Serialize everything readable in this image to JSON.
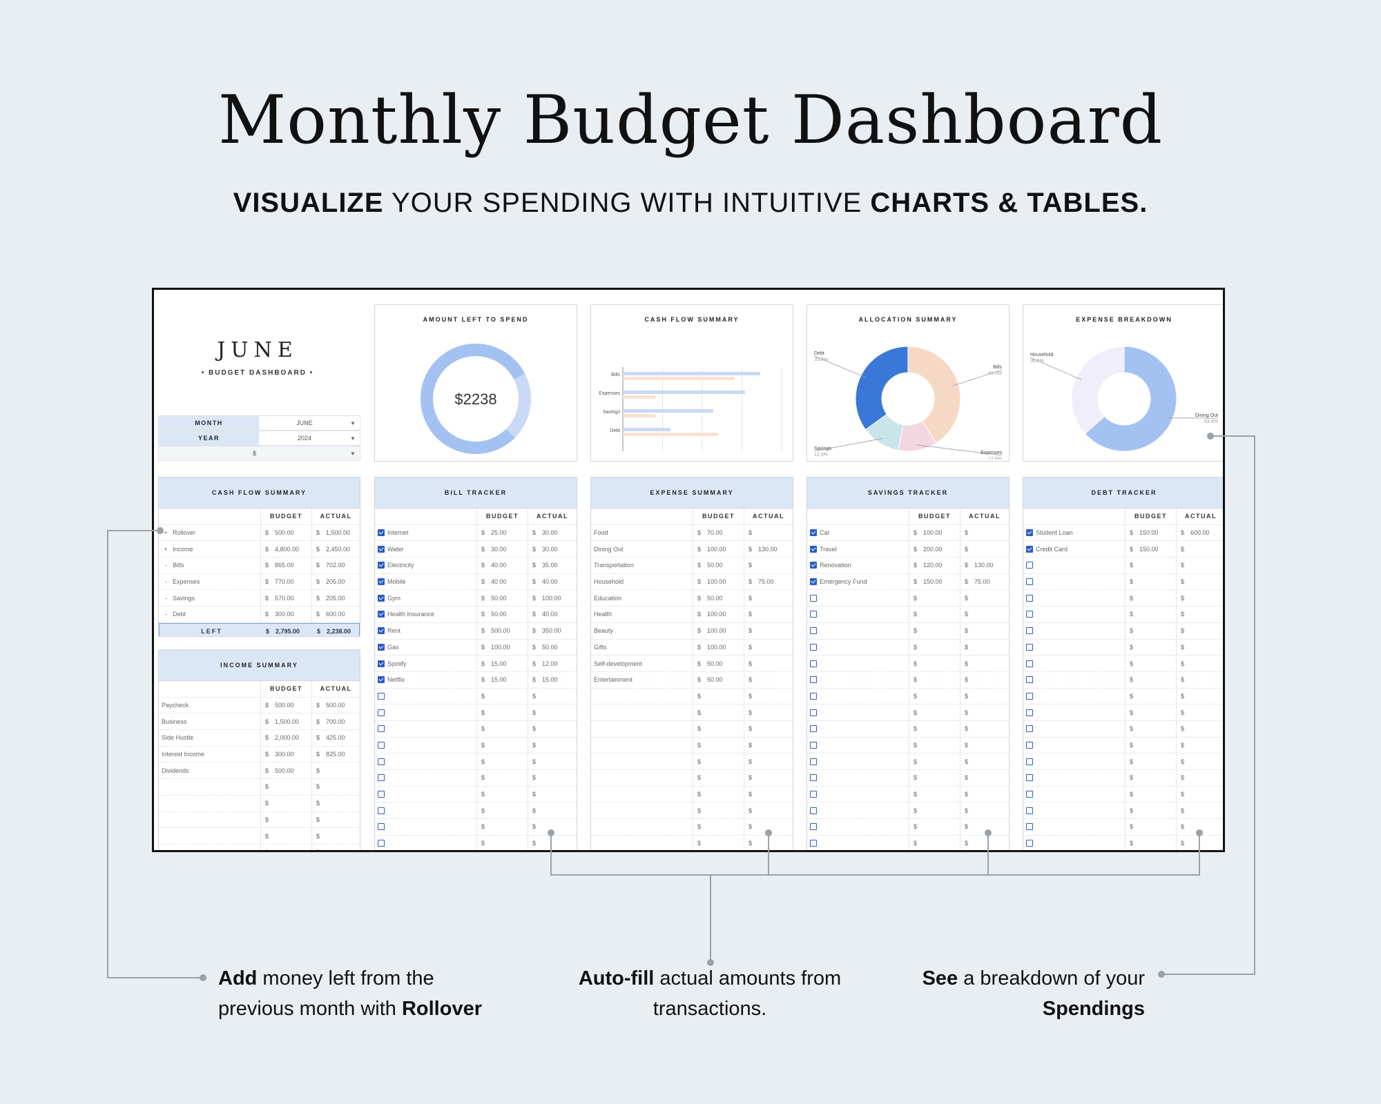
{
  "header": {
    "title": "Monthly Budget Dashboard",
    "subtitle_bold_1": "VISUALIZE",
    "subtitle_mid": " YOUR SPENDING WITH INTUITIVE ",
    "subtitle_bold_2": "CHARTS & TABLES."
  },
  "month_block": {
    "month_name": "JUNE",
    "subtitle": "• BUDGET DASHBOARD •",
    "month_label": "MONTH",
    "month_value": "JUNE",
    "year_label": "YEAR",
    "year_value": "2024",
    "currency_value": "$"
  },
  "amount_left": {
    "title": "AMOUNT LEFT TO SPEND",
    "value": "$2238",
    "remaining_fraction": 0.8
  },
  "cash_flow_chart": {
    "title": "CASH FLOW SUMMARY"
  },
  "allocation_chart": {
    "title": "ALLOCATION SUMMARY"
  },
  "expense_chart": {
    "title": "EXPENSE BREAKDOWN"
  },
  "chart_data": [
    {
      "type": "bar",
      "title": "CASH FLOW SUMMARY",
      "categories": [
        "Bills",
        "Expenses",
        "Savings",
        "Debt"
      ],
      "series": [
        {
          "values": [
            865,
            770,
            570,
            300
          ],
          "color": "#c9d9f3"
        },
        {
          "values": [
            702,
            205,
            205,
            600
          ],
          "color": "#fbe1d2"
        }
      ],
      "orientation": "horizontal"
    },
    {
      "type": "pie",
      "title": "ALLOCATION SUMMARY",
      "labels": [
        "Bills",
        "Expenses",
        "Savings",
        "Debt"
      ],
      "values": [
        41.0,
        12.0,
        12.0,
        35.0
      ],
      "label_text": [
        "41.0%",
        "12.0%",
        "12.0%",
        "35.0%"
      ],
      "colors": [
        "#f6d9c4",
        "#f2d6e0",
        "#c8e6ea",
        "#3a78d8"
      ]
    },
    {
      "type": "pie",
      "title": "EXPENSE BREAKDOWN",
      "labels": [
        "Dining Out",
        "Household"
      ],
      "values": [
        63.4,
        36.6
      ],
      "label_text": [
        "63.4%",
        "36.6%"
      ],
      "colors": [
        "#a4c2f1",
        "#f1eefb"
      ]
    }
  ],
  "cash_flow_table": {
    "title": "CASH FLOW SUMMARY",
    "budget_header": "BUDGET",
    "actual_header": "ACTUAL",
    "rows": [
      {
        "sign": "+",
        "label": "Rollover",
        "budget": "500.00",
        "actual": "1,500.00"
      },
      {
        "sign": "+",
        "label": "Income",
        "budget": "4,800.00",
        "actual": "2,450.00"
      },
      {
        "sign": "-",
        "label": "Bills",
        "budget": "865.00",
        "actual": "702.00"
      },
      {
        "sign": "-",
        "label": "Expenses",
        "budget": "770.00",
        "actual": "205.00"
      },
      {
        "sign": "-",
        "label": "Savings",
        "budget": "570.00",
        "actual": "205.00"
      },
      {
        "sign": "-",
        "label": "Debt",
        "budget": "300.00",
        "actual": "600.00"
      }
    ],
    "left_label": "LEFT",
    "left_budget": "2,795.00",
    "left_actual": "2,238.00"
  },
  "income_table": {
    "title": "INCOME SUMMARY",
    "budget_header": "BUDGET",
    "actual_header": "ACTUAL",
    "rows": [
      {
        "label": "Paycheck",
        "budget": "500.00",
        "actual": "500.00"
      },
      {
        "label": "Business",
        "budget": "1,500.00",
        "actual": "700.00"
      },
      {
        "label": "Side Hustle",
        "budget": "2,000.00",
        "actual": "425.00"
      },
      {
        "label": "Interest Income",
        "budget": "300.00",
        "actual": "825.00"
      },
      {
        "label": "Dividends",
        "budget": "500.00",
        "actual": ""
      },
      {
        "label": "",
        "budget": "",
        "actual": ""
      },
      {
        "label": "",
        "budget": "",
        "actual": ""
      },
      {
        "label": "",
        "budget": "",
        "actual": ""
      },
      {
        "label": "",
        "budget": "",
        "actual": ""
      },
      {
        "label": "",
        "budget": "",
        "actual": ""
      }
    ]
  },
  "bill_tracker": {
    "title": "BILL TRACKER",
    "budget_header": "BUDGET",
    "actual_header": "ACTUAL",
    "rows": [
      {
        "checked": true,
        "label": "Internet",
        "budget": "25.00",
        "actual": "30.00"
      },
      {
        "checked": true,
        "label": "Water",
        "budget": "30.00",
        "actual": "30.00"
      },
      {
        "checked": true,
        "label": "Electricity",
        "budget": "40.00",
        "actual": "35.00"
      },
      {
        "checked": true,
        "label": "Mobile",
        "budget": "40.00",
        "actual": "40.00"
      },
      {
        "checked": true,
        "label": "Gym",
        "budget": "50.00",
        "actual": "100.00"
      },
      {
        "checked": true,
        "label": "Health Insurance",
        "budget": "50.00",
        "actual": "40.00"
      },
      {
        "checked": true,
        "label": "Rent",
        "budget": "500.00",
        "actual": "350.00"
      },
      {
        "checked": true,
        "label": "Gas",
        "budget": "100.00",
        "actual": "50.00"
      },
      {
        "checked": true,
        "label": "Spotify",
        "budget": "15.00",
        "actual": "12.00"
      },
      {
        "checked": true,
        "label": "Netflix",
        "budget": "15.00",
        "actual": "15.00"
      },
      {
        "checked": false,
        "label": "",
        "budget": "",
        "actual": ""
      },
      {
        "checked": false,
        "label": "",
        "budget": "",
        "actual": ""
      },
      {
        "checked": false,
        "label": "",
        "budget": "",
        "actual": ""
      },
      {
        "checked": false,
        "label": "",
        "budget": "",
        "actual": ""
      },
      {
        "checked": false,
        "label": "",
        "budget": "",
        "actual": ""
      },
      {
        "checked": false,
        "label": "",
        "budget": "",
        "actual": ""
      },
      {
        "checked": false,
        "label": "",
        "budget": "",
        "actual": ""
      },
      {
        "checked": false,
        "label": "",
        "budget": "",
        "actual": ""
      },
      {
        "checked": false,
        "label": "",
        "budget": "",
        "actual": ""
      },
      {
        "checked": false,
        "label": "",
        "budget": "",
        "actual": ""
      },
      {
        "checked": false,
        "label": "",
        "budget": "",
        "actual": ""
      }
    ]
  },
  "expense_summary": {
    "title": "EXPENSE SUMMARY",
    "budget_header": "BUDGET",
    "actual_header": "ACTUAL",
    "rows": [
      {
        "label": "Food",
        "budget": "70.00",
        "actual": ""
      },
      {
        "label": "Dining Out",
        "budget": "100.00",
        "actual": "130.00"
      },
      {
        "label": "Transportation",
        "budget": "50.00",
        "actual": ""
      },
      {
        "label": "Household",
        "budget": "100.00",
        "actual": "75.00"
      },
      {
        "label": "Education",
        "budget": "50.00",
        "actual": ""
      },
      {
        "label": "Health",
        "budget": "100.00",
        "actual": ""
      },
      {
        "label": "Beauty",
        "budget": "100.00",
        "actual": ""
      },
      {
        "label": "Gifts",
        "budget": "100.00",
        "actual": ""
      },
      {
        "label": "Self-development",
        "budget": "50.00",
        "actual": ""
      },
      {
        "label": "Entertainment",
        "budget": "50.00",
        "actual": ""
      },
      {
        "label": "",
        "budget": "",
        "actual": ""
      },
      {
        "label": "",
        "budget": "",
        "actual": ""
      },
      {
        "label": "",
        "budget": "",
        "actual": ""
      },
      {
        "label": "",
        "budget": "",
        "actual": ""
      },
      {
        "label": "",
        "budget": "",
        "actual": ""
      },
      {
        "label": "",
        "budget": "",
        "actual": ""
      },
      {
        "label": "",
        "budget": "",
        "actual": ""
      },
      {
        "label": "",
        "budget": "",
        "actual": ""
      },
      {
        "label": "",
        "budget": "",
        "actual": ""
      },
      {
        "label": "",
        "budget": "",
        "actual": ""
      },
      {
        "label": "",
        "budget": "",
        "actual": ""
      }
    ]
  },
  "savings_tracker": {
    "title": "SAVINGS TRACKER",
    "budget_header": "BUDGET",
    "actual_header": "ACTUAL",
    "rows": [
      {
        "checked": true,
        "label": "Car",
        "budget": "100.00",
        "actual": ""
      },
      {
        "checked": true,
        "label": "Travel",
        "budget": "200.00",
        "actual": ""
      },
      {
        "checked": true,
        "label": "Renovation",
        "budget": "120.00",
        "actual": "130.00"
      },
      {
        "checked": true,
        "label": "Emergency Fund",
        "budget": "150.00",
        "actual": "75.00"
      },
      {
        "checked": false,
        "label": "",
        "budget": "",
        "actual": ""
      },
      {
        "checked": false,
        "label": "",
        "budget": "",
        "actual": ""
      },
      {
        "checked": false,
        "label": "",
        "budget": "",
        "actual": ""
      },
      {
        "checked": false,
        "label": "",
        "budget": "",
        "actual": ""
      },
      {
        "checked": false,
        "label": "",
        "budget": "",
        "actual": ""
      },
      {
        "checked": false,
        "label": "",
        "budget": "",
        "actual": ""
      },
      {
        "checked": false,
        "label": "",
        "budget": "",
        "actual": ""
      },
      {
        "checked": false,
        "label": "",
        "budget": "",
        "actual": ""
      },
      {
        "checked": false,
        "label": "",
        "budget": "",
        "actual": ""
      },
      {
        "checked": false,
        "label": "",
        "budget": "",
        "actual": ""
      },
      {
        "checked": false,
        "label": "",
        "budget": "",
        "actual": ""
      },
      {
        "checked": false,
        "label": "",
        "budget": "",
        "actual": ""
      },
      {
        "checked": false,
        "label": "",
        "budget": "",
        "actual": ""
      },
      {
        "checked": false,
        "label": "",
        "budget": "",
        "actual": ""
      },
      {
        "checked": false,
        "label": "",
        "budget": "",
        "actual": ""
      },
      {
        "checked": false,
        "label": "",
        "budget": "",
        "actual": ""
      },
      {
        "checked": false,
        "label": "",
        "budget": "",
        "actual": ""
      }
    ]
  },
  "debt_tracker": {
    "title": "DEBT TRACKER",
    "budget_header": "BUDGET",
    "actual_header": "ACTUAL",
    "rows": [
      {
        "checked": true,
        "label": "Student Loan",
        "budget": "150.00",
        "actual": "600.00"
      },
      {
        "checked": true,
        "label": "Credit Card",
        "budget": "150.00",
        "actual": ""
      },
      {
        "checked": false,
        "label": "",
        "budget": "",
        "actual": ""
      },
      {
        "checked": false,
        "label": "",
        "budget": "",
        "actual": ""
      },
      {
        "checked": false,
        "label": "",
        "budget": "",
        "actual": ""
      },
      {
        "checked": false,
        "label": "",
        "budget": "",
        "actual": ""
      },
      {
        "checked": false,
        "label": "",
        "budget": "",
        "actual": ""
      },
      {
        "checked": false,
        "label": "",
        "budget": "",
        "actual": ""
      },
      {
        "checked": false,
        "label": "",
        "budget": "",
        "actual": ""
      },
      {
        "checked": false,
        "label": "",
        "budget": "",
        "actual": ""
      },
      {
        "checked": false,
        "label": "",
        "budget": "",
        "actual": ""
      },
      {
        "checked": false,
        "label": "",
        "budget": "",
        "actual": ""
      },
      {
        "checked": false,
        "label": "",
        "budget": "",
        "actual": ""
      },
      {
        "checked": false,
        "label": "",
        "budget": "",
        "actual": ""
      },
      {
        "checked": false,
        "label": "",
        "budget": "",
        "actual": ""
      },
      {
        "checked": false,
        "label": "",
        "budget": "",
        "actual": ""
      },
      {
        "checked": false,
        "label": "",
        "budget": "",
        "actual": ""
      },
      {
        "checked": false,
        "label": "",
        "budget": "",
        "actual": ""
      },
      {
        "checked": false,
        "label": "",
        "budget": "",
        "actual": ""
      },
      {
        "checked": false,
        "label": "",
        "budget": "",
        "actual": ""
      },
      {
        "checked": false,
        "label": "",
        "budget": "",
        "actual": ""
      }
    ]
  },
  "currency_symbol": "$",
  "annotations": {
    "left_bold": "Add",
    "left_text_1": " money left from the",
    "left_text_2": "previous month with ",
    "left_bold_2": "Rollover",
    "mid_bold": "Auto-fill",
    "mid_text_1": " actual amounts from",
    "mid_text_2": "transactions.",
    "right_bold": "See",
    "right_text_1": " a breakdown of your",
    "right_bold_2": "Spendings"
  },
  "colors": {
    "accent_blue": "#2b5cc4",
    "header_fill": "#dbe7f4",
    "donut_blue": "#a4c2f1",
    "donut_light": "#c9d9f6"
  }
}
